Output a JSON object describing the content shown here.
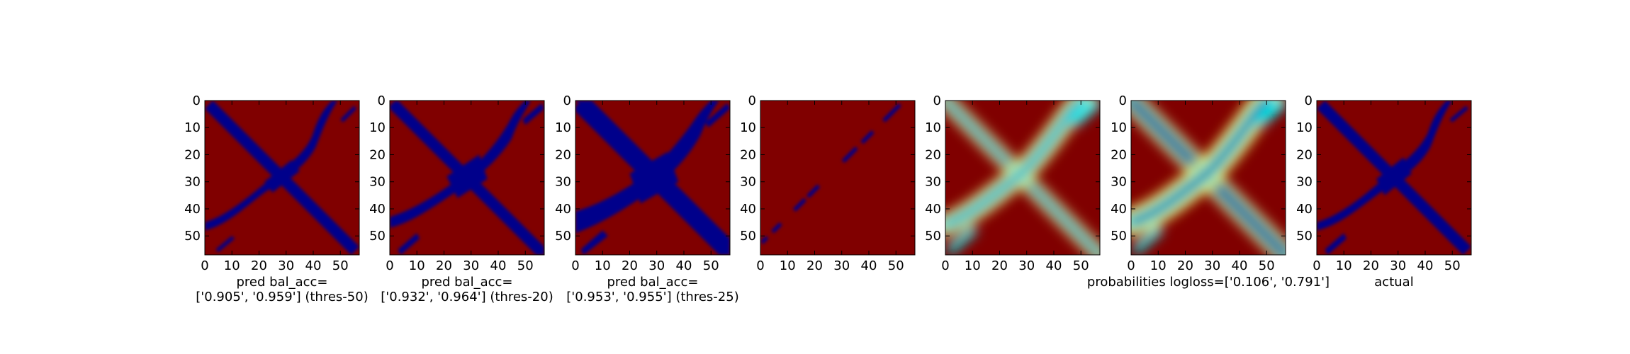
{
  "colors": {
    "high": "#800000",
    "low": "#00008b",
    "axis": "#000000"
  },
  "chart_data": [
    {
      "type": "heatmap",
      "colormap": "jet",
      "values": "binary",
      "xticks": [
        0,
        10,
        20,
        30,
        40,
        50
      ],
      "yticks": [
        0,
        10,
        20,
        30,
        40,
        50
      ],
      "xlim": [
        0,
        57
      ],
      "ylim": [
        57,
        0
      ],
      "caption_lines": [
        "pred bal_acc=",
        "['0.905', '0.959'] (thres-50)"
      ]
    },
    {
      "type": "heatmap",
      "colormap": "jet",
      "values": "binary",
      "xticks": [
        0,
        10,
        20,
        30,
        40,
        50
      ],
      "yticks": [
        0,
        10,
        20,
        30,
        40,
        50
      ],
      "xlim": [
        0,
        57
      ],
      "ylim": [
        57,
        0
      ],
      "caption_lines": [
        "pred bal_acc=",
        "['0.932', '0.964'] (thres-20)"
      ]
    },
    {
      "type": "heatmap",
      "colormap": "jet",
      "values": "binary",
      "xticks": [
        0,
        10,
        20,
        30,
        40,
        50
      ],
      "yticks": [
        0,
        10,
        20,
        30,
        40,
        50
      ],
      "xlim": [
        0,
        57
      ],
      "ylim": [
        57,
        0
      ],
      "caption_lines": [
        "pred bal_acc=",
        "['0.953', '0.955'] (thres-25)"
      ]
    },
    {
      "type": "heatmap",
      "colormap": "jet",
      "values": "binary",
      "xticks": [
        0,
        10,
        20,
        30,
        40,
        50
      ],
      "yticks": [
        0,
        10,
        20,
        30,
        40,
        50
      ],
      "xlim": [
        0,
        57
      ],
      "ylim": [
        57,
        0
      ],
      "caption_lines": []
    },
    {
      "type": "heatmap",
      "colormap": "jet",
      "values": "probability",
      "xticks": [
        0,
        10,
        20,
        30,
        40,
        50
      ],
      "yticks": [
        0,
        10,
        20,
        30,
        40,
        50
      ],
      "xlim": [
        0,
        57
      ],
      "ylim": [
        57,
        0
      ],
      "caption_lines": []
    },
    {
      "type": "heatmap",
      "colormap": "jet",
      "values": "probability",
      "xticks": [
        0,
        10,
        20,
        30,
        40,
        50
      ],
      "yticks": [
        0,
        10,
        20,
        30,
        40,
        50
      ],
      "xlim": [
        0,
        57
      ],
      "ylim": [
        57,
        0
      ],
      "caption_lines": [
        "probabilities logloss=['0.106', '0.791']"
      ]
    },
    {
      "type": "heatmap",
      "colormap": "jet",
      "values": "binary",
      "xticks": [
        0,
        10,
        20,
        30,
        40,
        50
      ],
      "yticks": [
        0,
        10,
        20,
        30,
        40,
        50
      ],
      "xlim": [
        0,
        57
      ],
      "ylim": [
        57,
        0
      ],
      "caption_lines": [
        "actual"
      ]
    }
  ]
}
